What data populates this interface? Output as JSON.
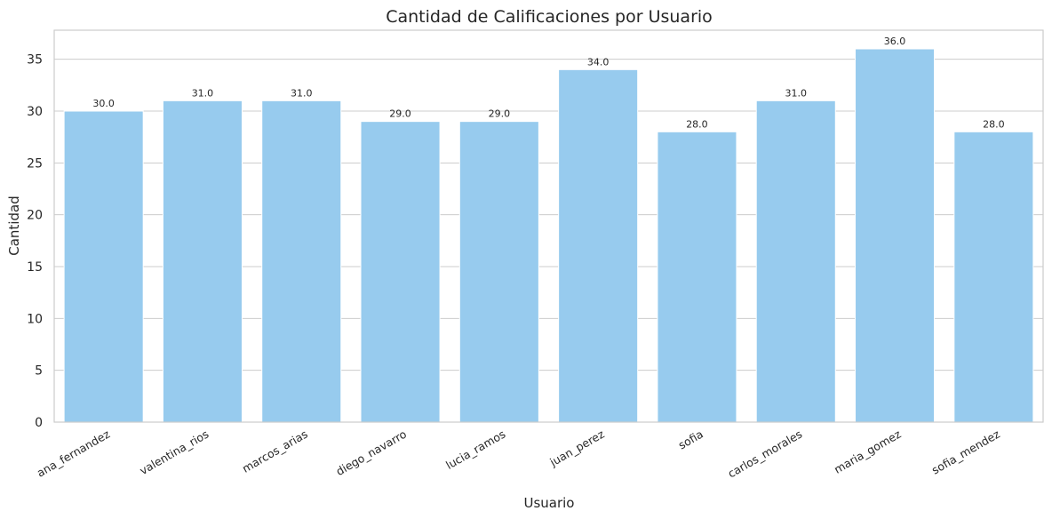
{
  "chart_data": {
    "type": "bar",
    "title": "Cantidad de Calificaciones por Usuario",
    "xlabel": "Usuario",
    "ylabel": "Cantidad",
    "categories": [
      "ana_fernandez",
      "valentina_rios",
      "marcos_arias",
      "diego_navarro",
      "lucia_ramos",
      "juan_perez",
      "sofia",
      "carlos_morales",
      "maria_gomez",
      "sofia_mendez"
    ],
    "values": [
      30,
      31,
      31,
      29,
      29,
      34,
      28,
      31,
      36,
      28
    ],
    "data_labels": [
      "30.0",
      "31.0",
      "31.0",
      "29.0",
      "29.0",
      "34.0",
      "28.0",
      "31.0",
      "36.0",
      "28.0"
    ],
    "yticks": [
      0,
      5,
      10,
      15,
      20,
      25,
      30,
      35
    ],
    "ylim": [
      0,
      37.8
    ],
    "grid": "y",
    "bar_color": "#97cbee"
  }
}
